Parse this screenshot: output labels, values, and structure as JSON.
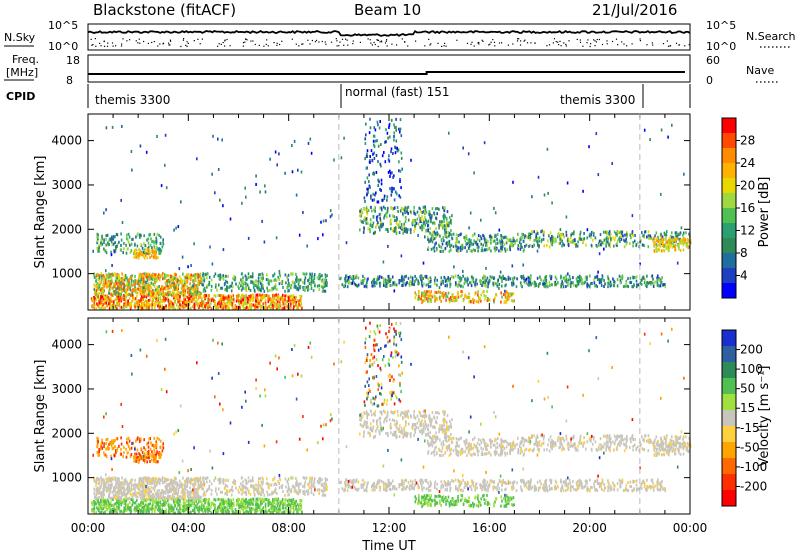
{
  "header": {
    "title": "Blackstone (fitACF)",
    "beam": "Beam 10",
    "date": "21/Jul/2016"
  },
  "top_panels": {
    "nsky_label": "N.Sky",
    "nsearch_label": "N.Search",
    "freq_label_1": "Freq.",
    "freq_label_2": "[MHz]",
    "nave_label": "Nave",
    "cpid_label": "CPID",
    "noise_ticks": [
      "10^5",
      "10^0"
    ],
    "noise_ticks_right": [
      "10^5",
      "10^0"
    ],
    "freq_ticks": [
      "18",
      "8"
    ],
    "nave_ticks": [
      "60",
      "0"
    ],
    "cpid_segments": [
      "themis 3300",
      "normal (fast) 151",
      "themis 3300"
    ]
  },
  "chart_data": [
    {
      "type": "heatmap",
      "panel": "power",
      "xlabel": "",
      "ylabel": "Slant Range [km]",
      "ylim": [
        180,
        4600
      ],
      "yticks": [
        "1000",
        "2000",
        "3000",
        "4000"
      ],
      "colorbar_label": "Power [dB]",
      "colorbar_ticks": [
        "28",
        "24",
        "20",
        "16",
        "12",
        "8",
        "4"
      ],
      "colorbar_colors": [
        "#ff0000",
        "#ff4a00",
        "#ff8c00",
        "#ffb300",
        "#e8d800",
        "#a0d840",
        "#50c050",
        "#2aa070",
        "#2e8b57",
        "#1f6e9e",
        "#1e3fbf",
        "#0000ff"
      ]
    },
    {
      "type": "heatmap",
      "panel": "velocity",
      "xlabel": "Time UT",
      "ylabel": "Slant Range [km]",
      "ylim": [
        180,
        4600
      ],
      "yticks": [
        "1000",
        "2000",
        "3000",
        "4000"
      ],
      "xticks": [
        "00:00",
        "04:00",
        "08:00",
        "12:00",
        "16:00",
        "20:00",
        "00:00"
      ],
      "colorbar_label": "Velocity [m s⁻¹]",
      "colorbar_ticks": [
        "200",
        "100",
        "50",
        "15",
        "-15",
        "-50",
        "-100",
        "-200"
      ],
      "colorbar_colors": [
        "#1a2fd0",
        "#2e5fa0",
        "#2e8b57",
        "#50c050",
        "#a0e040",
        "#c8c6bc",
        "#ffd040",
        "#ffa500",
        "#ff6a00",
        "#ff3000",
        "#ff0000"
      ]
    }
  ]
}
